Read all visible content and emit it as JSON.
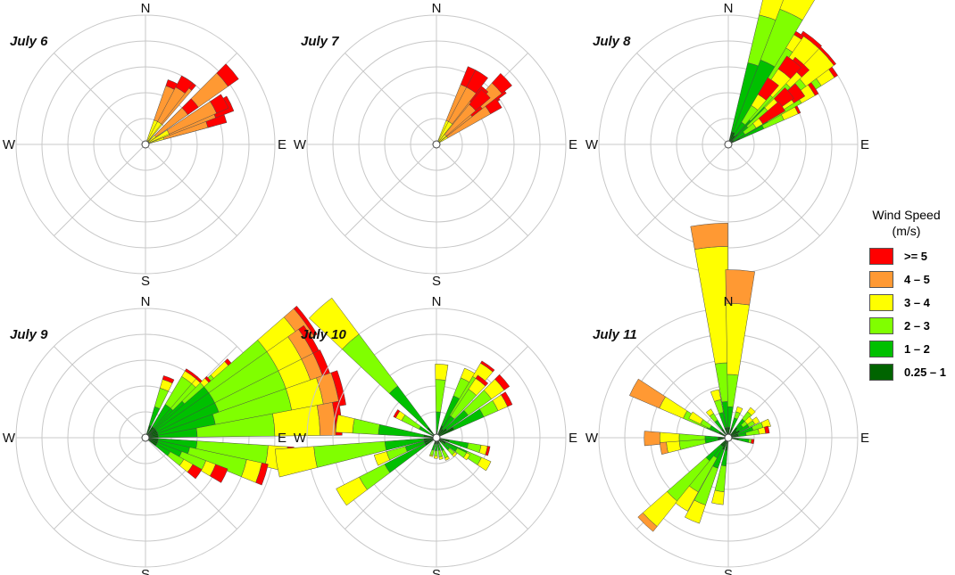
{
  "legend": {
    "title_line1": "Wind Speed",
    "title_line2": "(m/s)",
    "bins": [
      {
        "label": ">= 5",
        "color": "#ff0000"
      },
      {
        "label": "4 – 5",
        "color": "#ff9933"
      },
      {
        "label": "3 – 4",
        "color": "#ffff00"
      },
      {
        "label": "2 – 3",
        "color": "#80ff00"
      },
      {
        "label": "1 – 2",
        "color": "#00c000"
      },
      {
        "label": "0.25 – 1",
        "color": "#006400"
      }
    ]
  },
  "chart_data": [
    {
      "type": "wind-rose",
      "title": "July 6",
      "compass": [
        "N",
        "E",
        "S",
        "W"
      ],
      "petals": [
        [
          0.55,
          0,
          0,
          0,
          0,
          0,
          0
        ],
        [
          0.35,
          0,
          0,
          0,
          0.1,
          0.35,
          0.1
        ],
        [
          0.35,
          0,
          0,
          0,
          0.15,
          0.35,
          0.15
        ],
        [
          0.45,
          0,
          0,
          0,
          0.2,
          0.38,
          0.15
        ],
        [
          0.5,
          0,
          0,
          0,
          0.2,
          0.4,
          0.1
        ],
        [
          0.7,
          0,
          0,
          0,
          0.2,
          0.58,
          0.1
        ],
        [
          0.95,
          0,
          0,
          0,
          0.2,
          0.35,
          0.05
        ],
        [
          1.15,
          0,
          0,
          0,
          0.2,
          0.28,
          0.05
        ],
        [
          1.0,
          0,
          0,
          0,
          0.2,
          0.3,
          0.1
        ],
        [
          0.7,
          0,
          0,
          0,
          0.1,
          0.3,
          0.1
        ]
      ]
    },
    {
      "type": "wind-rose",
      "title": "July 7",
      "compass": [
        "N",
        "E",
        "S",
        "W"
      ],
      "petals": [
        [
          0.55,
          0,
          0,
          0,
          0,
          0,
          0
        ],
        [
          0.7,
          0,
          0,
          0,
          0.1,
          0.45,
          0.05
        ],
        [
          0.72,
          0,
          0,
          0,
          0.12,
          0.45,
          0.1
        ],
        [
          0.6,
          0,
          0,
          0,
          0.1,
          0.38,
          0.1
        ],
        [
          0.75,
          0,
          0,
          0,
          0.12,
          0.52,
          0.1
        ],
        [
          0.75,
          0,
          0,
          0,
          0.1,
          0.25,
          0.1
        ],
        [
          0.88,
          0,
          0,
          0,
          0.2,
          0.22,
          0.15
        ],
        [
          1.1,
          0,
          0,
          0,
          0.2,
          0.3,
          0.15
        ],
        [
          1.0,
          0,
          0,
          0,
          0.2,
          0.3,
          0.15
        ],
        [
          0.8,
          0,
          0,
          0,
          0.1,
          0.3,
          0.15
        ]
      ]
    },
    {
      "type": "wind-rose",
      "title": "July 8",
      "compass": [
        "N",
        "E",
        "S",
        "W"
      ],
      "petals": [
        [
          0.65,
          0.1,
          0.3,
          0.45,
          0.12,
          0,
          0.03
        ],
        [
          0.8,
          0.1,
          0.25,
          0.22,
          0.12,
          0,
          0.02
        ],
        [
          0.5,
          0.1,
          0.2,
          0.17,
          0.12,
          0,
          0.02
        ],
        [
          0.6,
          0.1,
          0.25,
          0.3,
          0.12,
          0,
          0.03
        ],
        [
          0.73,
          0.1,
          0.3,
          0.35,
          0.27,
          0,
          0.02
        ],
        [
          0.9,
          0.1,
          0.3,
          0.35,
          0.27,
          0,
          0.03
        ],
        [
          1.05,
          0.1,
          0.4,
          0.37,
          0.12,
          0,
          0.03
        ],
        [
          1.25,
          0.1,
          0.55,
          0.38,
          0.27,
          0.04,
          0.03
        ],
        [
          1.12,
          0.1,
          0.6,
          0.42,
          0.2,
          0.04,
          0.03
        ],
        [
          0.83,
          0.1,
          0.3,
          0.25,
          0.12,
          0,
          0.08
        ],
        [
          0.65,
          0.1,
          0.2,
          0.2,
          0.1,
          0,
          0.1
        ],
        [
          0.9,
          0.1,
          0.15,
          0.25,
          0.2,
          0,
          0.12
        ],
        [
          0.7,
          0.05,
          0.15,
          0.2,
          0.1,
          0,
          0.12
        ],
        [
          0.95,
          0.08,
          0.12,
          0.15,
          0.1,
          0,
          0.15
        ],
        [
          0.62,
          0.05,
          0.1,
          0.1,
          0.06,
          0,
          0.2
        ]
      ]
    },
    {
      "type": "wind-rose",
      "title": "July 9",
      "compass": [
        "N",
        "E",
        "S",
        "W"
      ],
      "petals": [
        [
          0.5,
          0.1,
          0.2,
          0.3,
          0.28,
          0,
          0.05
        ],
        [
          0.68,
          0.1,
          0.25,
          0.35,
          0.15,
          0,
          0.03
        ],
        [
          0.45,
          0.1,
          0.2,
          0.3,
          0.18,
          0,
          0.02
        ],
        [
          1.2,
          0.1,
          0.15,
          0.15,
          0.07,
          0,
          0.03
        ],
        [
          0.55,
          0.1,
          0.15,
          0.2,
          0.05,
          0,
          0.02
        ],
        [
          0.5,
          0.1,
          0.2,
          0.2,
          0.06,
          0,
          0.02
        ],
        [
          0.78,
          0.1,
          0.2,
          0.25,
          0.05,
          0,
          0.02
        ],
        [
          0.95,
          0.1,
          0.2,
          0.25,
          0.05,
          0,
          0.02
        ],
        [
          0.7,
          0.1,
          0.3,
          0.2,
          0.05,
          0,
          0.02
        ],
        [
          0.63,
          0.1,
          0.5,
          0.55,
          0.27,
          0.1,
          0.03
        ],
        [
          0.53,
          0.1,
          0.5,
          0.55,
          0.2,
          0.1,
          0.05
        ],
        [
          0.38,
          0.1,
          0.5,
          0.55,
          0.2,
          0.1,
          0.06
        ],
        [
          0.25,
          0.1,
          0.45,
          0.6,
          0.25,
          0.12,
          0.05
        ],
        [
          0.1,
          0.1,
          0.3,
          0.6,
          0.35,
          0.12,
          0.05
        ],
        [
          -0.15,
          0.1,
          0.3,
          0.55,
          0.15,
          0,
          0.05
        ],
        [
          -0.3,
          0.1,
          0.25,
          0.45,
          0.12,
          0,
          0.05
        ],
        [
          -0.45,
          0.1,
          0.2,
          0.2,
          0.08,
          0,
          0.1
        ],
        [
          -0.6,
          0.1,
          0.12,
          0.12,
          0.08,
          0,
          0.08
        ]
      ]
    },
    {
      "type": "wind-rose",
      "title": "July 10",
      "compass": [
        "N",
        "E",
        "S",
        "W"
      ],
      "petals": [
        [
          3.3,
          0.1,
          0.3,
          0.55,
          0.3,
          0,
          0
        ],
        [
          3.0,
          0.1,
          0.35,
          0.2,
          0.13,
          0,
          0
        ],
        [
          3.5,
          0.1,
          0.15,
          0.15,
          0.1,
          0,
          0
        ],
        [
          3.7,
          0.1,
          0.35,
          0.22,
          0.2,
          0,
          0
        ],
        [
          2.3,
          0.1,
          0.4,
          0.5,
          0.35,
          0,
          0
        ],
        [
          1.1,
          0.1,
          0.25,
          0.15,
          0.08,
          0,
          0
        ],
        [
          0.95,
          0.08,
          0.12,
          0.35,
          0.12,
          0,
          0.02
        ],
        [
          1.5,
          0.05,
          0.15,
          0.25,
          0.12,
          0,
          0
        ],
        [
          2.6,
          0.05,
          0.1,
          0.15,
          0.05,
          0,
          0.02
        ],
        [
          0.5,
          0.15,
          0.25,
          0.12,
          0.08,
          0,
          0.04
        ],
        [
          0.7,
          0.1,
          0.2,
          0.22,
          0.12,
          0,
          0.05
        ],
        [
          0.9,
          0.08,
          0.12,
          0.25,
          0.1,
          0,
          0.03
        ],
        [
          -0.5,
          0.08,
          0.18,
          0.12,
          0.08,
          0,
          0
        ],
        [
          -0.25,
          0.1,
          0.15,
          0.1,
          0.05,
          0,
          0.02
        ],
        [
          -0.55,
          0.08,
          0.1,
          0.08,
          0.03,
          0,
          0
        ],
        [
          -0.75,
          0.05,
          0.08,
          0.05,
          0.02,
          0,
          0
        ],
        [
          -1.1,
          0.05,
          0.06,
          0.06,
          0.02,
          0,
          0
        ],
        [
          -1.35,
          0.05,
          0.05,
          0.05,
          0.02,
          0,
          0
        ],
        [
          -1.6,
          0.05,
          0.05,
          0.04,
          0.02,
          0,
          0
        ],
        [
          -1.85,
          0.05,
          0.05,
          0.04,
          0.01,
          0,
          0
        ]
      ]
    },
    {
      "type": "wind-rose",
      "title": "July 11",
      "compass": [
        "N",
        "E",
        "S",
        "W"
      ],
      "petals": [
        [
          1.66,
          0.08,
          0.2,
          0.3,
          0.9,
          0.18,
          0
        ],
        [
          1.5,
          0.08,
          0.16,
          0.25,
          0.55,
          0.26,
          0
        ],
        [
          2.65,
          0.08,
          0.1,
          0.2,
          0.2,
          0.25,
          0
        ],
        [
          3.15,
          0.08,
          0.1,
          0.2,
          0.15,
          0.12,
          0
        ],
        [
          3.3,
          0.08,
          0.1,
          0.2,
          0.1,
          0.05,
          0
        ],
        [
          3.95,
          0.08,
          0.15,
          0.4,
          0.25,
          0.05,
          0
        ],
        [
          4.12,
          0.08,
          0.1,
          0.3,
          0.17,
          0,
          0
        ],
        [
          4.3,
          0.1,
          0.15,
          0.3,
          0.15,
          0,
          0
        ],
        [
          4.55,
          0.1,
          0.12,
          0.2,
          0.1,
          0,
          0
        ],
        [
          0.85,
          0.1,
          0.08,
          0.07,
          0.04,
          0,
          0
        ],
        [
          0.55,
          0.1,
          0.08,
          0.05,
          0.04,
          0,
          0
        ],
        [
          0.35,
          0.08,
          0.12,
          0.08,
          0.06,
          0,
          0
        ],
        [
          1.85,
          0.08,
          0.12,
          0.1,
          0.08,
          0,
          0
        ],
        [
          2.2,
          0.08,
          0.08,
          0.06,
          0.04,
          0,
          0
        ],
        [
          -0.15,
          0.08,
          0.08,
          0.02,
          0,
          0,
          0.02
        ],
        [
          2.6,
          0.08,
          0.08,
          0.08,
          0.1,
          0,
          0
        ],
        [
          0.2,
          0.08,
          0.06,
          0.1,
          0.05,
          0,
          0.03
        ],
        [
          0.7,
          0.08,
          0.06,
          0.04,
          0.05,
          0,
          0
        ],
        [
          1.2,
          0.08,
          0.08,
          0.05,
          0.04,
          0,
          0
        ]
      ]
    }
  ]
}
